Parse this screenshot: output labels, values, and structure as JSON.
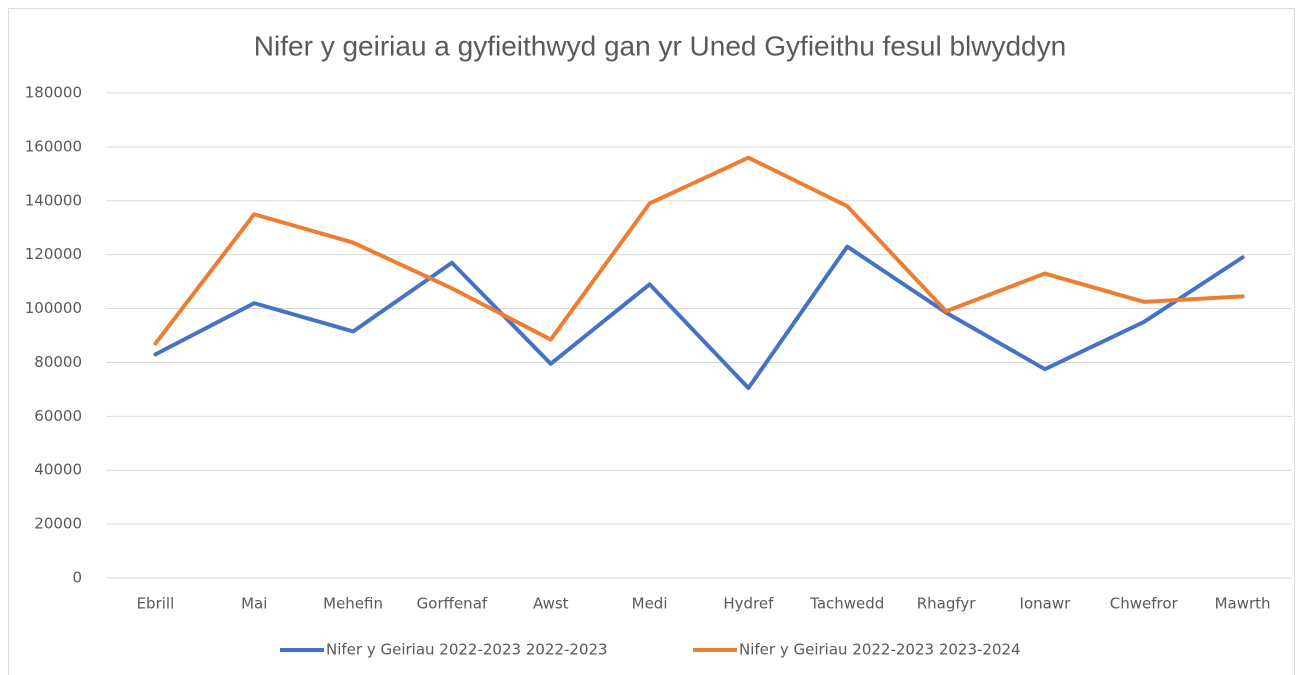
{
  "chart_data": {
    "type": "line",
    "title": "Nifer y geiriau a gyfieithwyd gan yr Uned Gyfieithu fesul blwyddyn",
    "categories": [
      "Ebrill",
      "Mai",
      "Mehefin",
      "Gorffenaf",
      "Awst",
      "Medi",
      "Hydref",
      "Tachwedd",
      "Rhagfyr",
      "Ionawr",
      "Chwefror",
      "Mawrth"
    ],
    "series": [
      {
        "name": "Nifer y Geiriau 2022-2023 2022-2023",
        "color": "#4472c4",
        "values": [
          83000,
          102000,
          91500,
          117000,
          79500,
          109000,
          70500,
          123000,
          98500,
          77500,
          95000,
          119000
        ]
      },
      {
        "name": "Nifer y Geiriau 2022-2023 2023-2024",
        "color": "#ed7d31",
        "values": [
          87000,
          135000,
          124500,
          107500,
          88500,
          139000,
          156000,
          138000,
          99000,
          113000,
          102500,
          104500
        ]
      }
    ],
    "ylim": [
      0,
      180000
    ],
    "yticks": [
      0,
      20000,
      40000,
      60000,
      80000,
      100000,
      120000,
      140000,
      160000,
      180000
    ],
    "grid": true,
    "legend": "bottom"
  }
}
